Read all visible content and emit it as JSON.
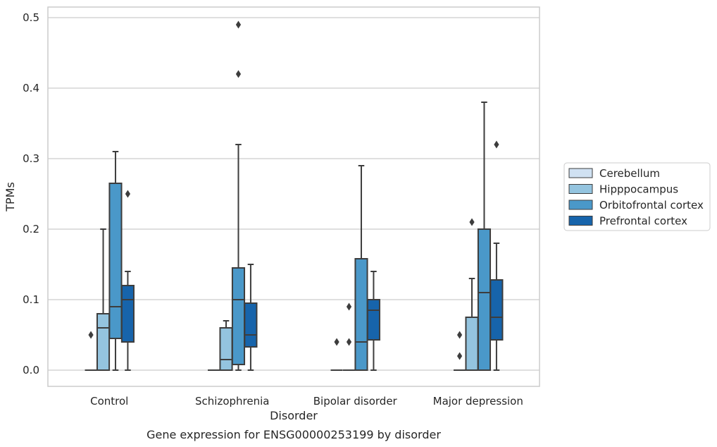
{
  "chart_data": {
    "type": "box",
    "title": "",
    "caption": "Gene expression for ENSG00000253199 by disorder",
    "xlabel": "Disorder",
    "ylabel": "TPMs",
    "ylim": [
      -0.023,
      0.515
    ],
    "yticks": [
      "0.0",
      "0.1",
      "0.2",
      "0.3",
      "0.4",
      "0.5"
    ],
    "grid": "horizontal",
    "legend_position": "right-center",
    "categories": [
      "Control",
      "Schizophrenia",
      "Bipolar disorder",
      "Major depression"
    ],
    "series": [
      {
        "name": "Cerebellum",
        "color": "#d0e1f2",
        "boxes": [
          {
            "whisker_low": 0,
            "q1": 0,
            "median": 0,
            "q3": 0,
            "whisker_high": 0,
            "outliers": [
              0.05
            ]
          },
          {
            "whisker_low": 0,
            "q1": 0,
            "median": 0,
            "q3": 0,
            "whisker_high": 0,
            "outliers": []
          },
          {
            "whisker_low": 0,
            "q1": 0,
            "median": 0,
            "q3": 0,
            "whisker_high": 0,
            "outliers": [
              0.04
            ]
          },
          {
            "whisker_low": 0,
            "q1": 0,
            "median": 0,
            "q3": 0,
            "whisker_high": 0,
            "outliers": [
              0.05,
              0.02
            ]
          }
        ]
      },
      {
        "name": "Hipppocampus",
        "color": "#94c4df",
        "boxes": [
          {
            "whisker_low": 0,
            "q1": 0,
            "median": 0.06,
            "q3": 0.08,
            "whisker_high": 0.2,
            "outliers": []
          },
          {
            "whisker_low": 0,
            "q1": 0,
            "median": 0.015,
            "q3": 0.06,
            "whisker_high": 0.07,
            "outliers": []
          },
          {
            "whisker_low": 0,
            "q1": 0,
            "median": 0,
            "q3": 0,
            "whisker_high": 0,
            "outliers": [
              0.09,
              0.04
            ]
          },
          {
            "whisker_low": 0,
            "q1": 0,
            "median": 0,
            "q3": 0.075,
            "whisker_high": 0.13,
            "outliers": [
              0.21
            ]
          }
        ]
      },
      {
        "name": "Orbitofrontal cortex",
        "color": "#4a98c9",
        "boxes": [
          {
            "whisker_low": 0,
            "q1": 0.045,
            "median": 0.09,
            "q3": 0.265,
            "whisker_high": 0.31,
            "outliers": []
          },
          {
            "whisker_low": 0,
            "q1": 0.008,
            "median": 0.1,
            "q3": 0.145,
            "whisker_high": 0.32,
            "outliers": [
              0.49,
              0.42
            ]
          },
          {
            "whisker_low": 0,
            "q1": 0,
            "median": 0.04,
            "q3": 0.158,
            "whisker_high": 0.29,
            "outliers": []
          },
          {
            "whisker_low": 0,
            "q1": 0,
            "median": 0.11,
            "q3": 0.2,
            "whisker_high": 0.38,
            "outliers": []
          }
        ]
      },
      {
        "name": "Prefrontal cortex",
        "color": "#1764ab",
        "boxes": [
          {
            "whisker_low": 0,
            "q1": 0.04,
            "median": 0.1,
            "q3": 0.12,
            "whisker_high": 0.14,
            "outliers": [
              0.25
            ]
          },
          {
            "whisker_low": 0,
            "q1": 0.033,
            "median": 0.05,
            "q3": 0.095,
            "whisker_high": 0.15,
            "outliers": []
          },
          {
            "whisker_low": 0,
            "q1": 0.043,
            "median": 0.085,
            "q3": 0.1,
            "whisker_high": 0.14,
            "outliers": []
          },
          {
            "whisker_low": 0,
            "q1": 0.043,
            "median": 0.075,
            "q3": 0.128,
            "whisker_high": 0.18,
            "outliers": [
              0.32
            ]
          }
        ]
      }
    ]
  }
}
